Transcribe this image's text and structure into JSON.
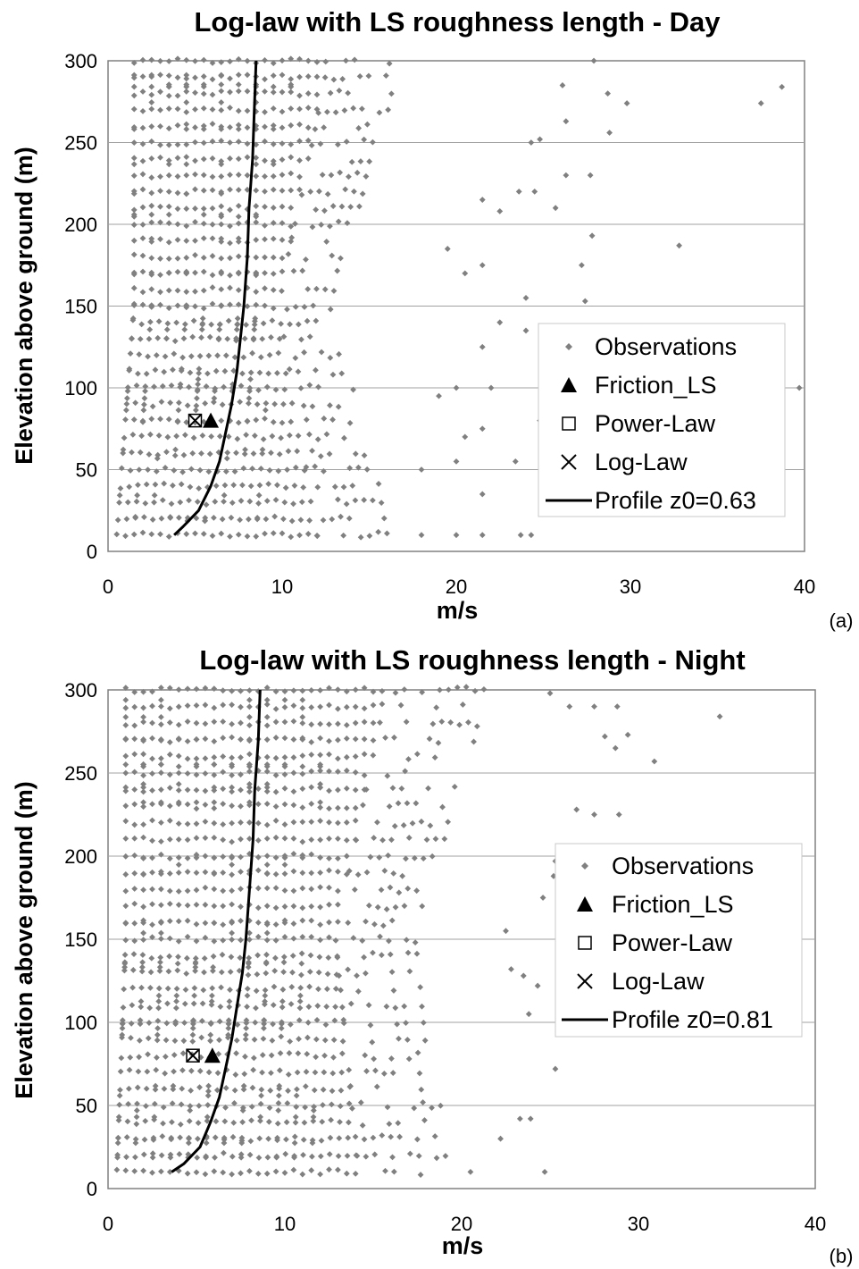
{
  "chart_data": [
    {
      "type": "scatter",
      "title": "Log-law with LS roughness length - Day",
      "xlabel": "m/s",
      "ylabel": "Elevation above ground (m)",
      "panel_tag": "(a)",
      "xlim": [
        0,
        40
      ],
      "ylim": [
        0,
        300
      ],
      "xticks": [
        0,
        10,
        20,
        30,
        40
      ],
      "yticks": [
        0,
        50,
        100,
        150,
        200,
        250,
        300
      ],
      "grid": "horizontal",
      "legend_position": "right-middle",
      "observations": {
        "name": "Observations",
        "color": "#808080",
        "heights": [
          10,
          20,
          30,
          40,
          50,
          60,
          70,
          80,
          90,
          100,
          110,
          120,
          130,
          140,
          150,
          160,
          170,
          180,
          190,
          200,
          210,
          220,
          230,
          240,
          250,
          260,
          270,
          280,
          290,
          300
        ],
        "dense_range_at_10m": [
          0.5,
          16.5
        ],
        "dense_range_at_150m": [
          1.5,
          13.0
        ],
        "dense_range_at_300m": [
          1.5,
          17.0
        ],
        "outliers": [
          [
            18,
            10
          ],
          [
            20,
            10
          ],
          [
            21.5,
            10
          ],
          [
            23.7,
            10
          ],
          [
            24.3,
            10
          ],
          [
            21.5,
            35
          ],
          [
            18,
            50
          ],
          [
            20,
            55
          ],
          [
            23.4,
            55
          ],
          [
            20.5,
            70
          ],
          [
            21.5,
            75
          ],
          [
            24.8,
            80
          ],
          [
            25.5,
            80
          ],
          [
            19,
            95
          ],
          [
            20,
            100
          ],
          [
            22,
            100
          ],
          [
            24,
            135
          ],
          [
            25.5,
            135
          ],
          [
            26.4,
            135
          ],
          [
            21.5,
            125
          ],
          [
            22.5,
            140
          ],
          [
            24,
            155
          ],
          [
            27.4,
            153
          ],
          [
            20.5,
            170
          ],
          [
            21.5,
            175
          ],
          [
            19.5,
            185
          ],
          [
            21.5,
            215
          ],
          [
            22.5,
            208
          ],
          [
            23.6,
            220
          ],
          [
            24.5,
            220
          ],
          [
            27.2,
            175
          ],
          [
            27.8,
            193
          ],
          [
            32.8,
            187
          ],
          [
            25.7,
            210
          ],
          [
            26.3,
            230
          ],
          [
            27.7,
            230
          ],
          [
            24.3,
            250
          ],
          [
            24.8,
            252
          ],
          [
            26.3,
            263
          ],
          [
            28.8,
            256
          ],
          [
            26.1,
            285
          ],
          [
            28.7,
            280
          ],
          [
            29.8,
            274
          ],
          [
            37.5,
            274
          ],
          [
            38.7,
            284
          ],
          [
            27.9,
            300
          ],
          [
            39.7,
            100
          ]
        ]
      },
      "series": [
        {
          "name": "Friction_LS",
          "marker": "filled-triangle",
          "points": [
            [
              5.9,
              80
            ]
          ]
        },
        {
          "name": "Power-Law",
          "marker": "open-square",
          "points": [
            [
              5.0,
              80
            ]
          ]
        },
        {
          "name": "Log-Law",
          "marker": "x",
          "points": [
            [
              5.0,
              80
            ]
          ]
        },
        {
          "name": "Profile z0=0.63",
          "type": "line",
          "x": [
            3.8,
            4.3,
            5.2,
            5.9,
            6.4,
            6.8,
            7.1,
            7.4,
            7.6,
            7.8,
            8.0,
            8.1,
            8.3,
            8.4,
            8.5
          ],
          "y": [
            10,
            15,
            25,
            40,
            55,
            75,
            90,
            110,
            130,
            150,
            180,
            210,
            240,
            270,
            300
          ]
        }
      ]
    },
    {
      "type": "scatter",
      "title": "Log-law with LS roughness length - Night",
      "xlabel": "m/s",
      "ylabel": "Elevation above ground (m)",
      "panel_tag": "(b)",
      "xlim": [
        0,
        40
      ],
      "ylim": [
        0,
        300
      ],
      "xticks": [
        0,
        10,
        20,
        30,
        40
      ],
      "yticks": [
        0,
        50,
        100,
        150,
        200,
        250,
        300
      ],
      "grid": "horizontal",
      "legend_position": "right-middle",
      "observations": {
        "name": "Observations",
        "color": "#808080",
        "heights": [
          10,
          20,
          30,
          40,
          50,
          60,
          70,
          80,
          90,
          100,
          110,
          120,
          130,
          140,
          150,
          160,
          170,
          180,
          190,
          200,
          210,
          220,
          230,
          240,
          250,
          260,
          270,
          280,
          290,
          300
        ],
        "dense_range_at_10m": [
          0.5,
          19.5
        ],
        "dense_range_at_150m": [
          1.0,
          17.5
        ],
        "dense_range_at_300m": [
          1.0,
          21.5
        ],
        "outliers": [
          [
            20.5,
            10
          ],
          [
            24.7,
            10
          ],
          [
            22.2,
            30
          ],
          [
            23.3,
            42
          ],
          [
            23.9,
            42
          ],
          [
            25.3,
            72
          ],
          [
            23.8,
            105
          ],
          [
            24.3,
            122
          ],
          [
            22.8,
            132
          ],
          [
            23.5,
            128
          ],
          [
            22.5,
            155
          ],
          [
            24.6,
            175
          ],
          [
            25.6,
            155
          ],
          [
            25.2,
            188
          ],
          [
            26.6,
            175
          ],
          [
            28.1,
            175
          ],
          [
            27.8,
            190
          ],
          [
            27.5,
            225
          ],
          [
            26.5,
            228
          ],
          [
            28.9,
            225
          ],
          [
            30.9,
            257
          ],
          [
            28.7,
            265
          ],
          [
            28.1,
            272
          ],
          [
            29.4,
            273
          ],
          [
            25.0,
            298
          ],
          [
            26.1,
            290
          ],
          [
            27.5,
            290
          ],
          [
            28.8,
            290
          ],
          [
            34.6,
            284
          ],
          [
            36.1,
            118
          ],
          [
            25.3,
            197
          ]
        ]
      },
      "series": [
        {
          "name": "Friction_LS",
          "marker": "filled-triangle",
          "points": [
            [
              5.9,
              80
            ]
          ]
        },
        {
          "name": "Power-Law",
          "marker": "open-square",
          "points": [
            [
              4.8,
              80
            ]
          ]
        },
        {
          "name": "Log-Law",
          "marker": "x",
          "points": [
            [
              4.8,
              80
            ]
          ]
        },
        {
          "name": "Profile z0=0.81",
          "type": "line",
          "x": [
            3.6,
            4.3,
            5.2,
            5.8,
            6.3,
            6.7,
            7.0,
            7.3,
            7.6,
            7.8,
            8.0,
            8.2,
            8.3,
            8.5,
            8.6
          ],
          "y": [
            10,
            15,
            25,
            40,
            55,
            75,
            90,
            110,
            130,
            150,
            180,
            210,
            240,
            270,
            300
          ]
        }
      ]
    }
  ]
}
